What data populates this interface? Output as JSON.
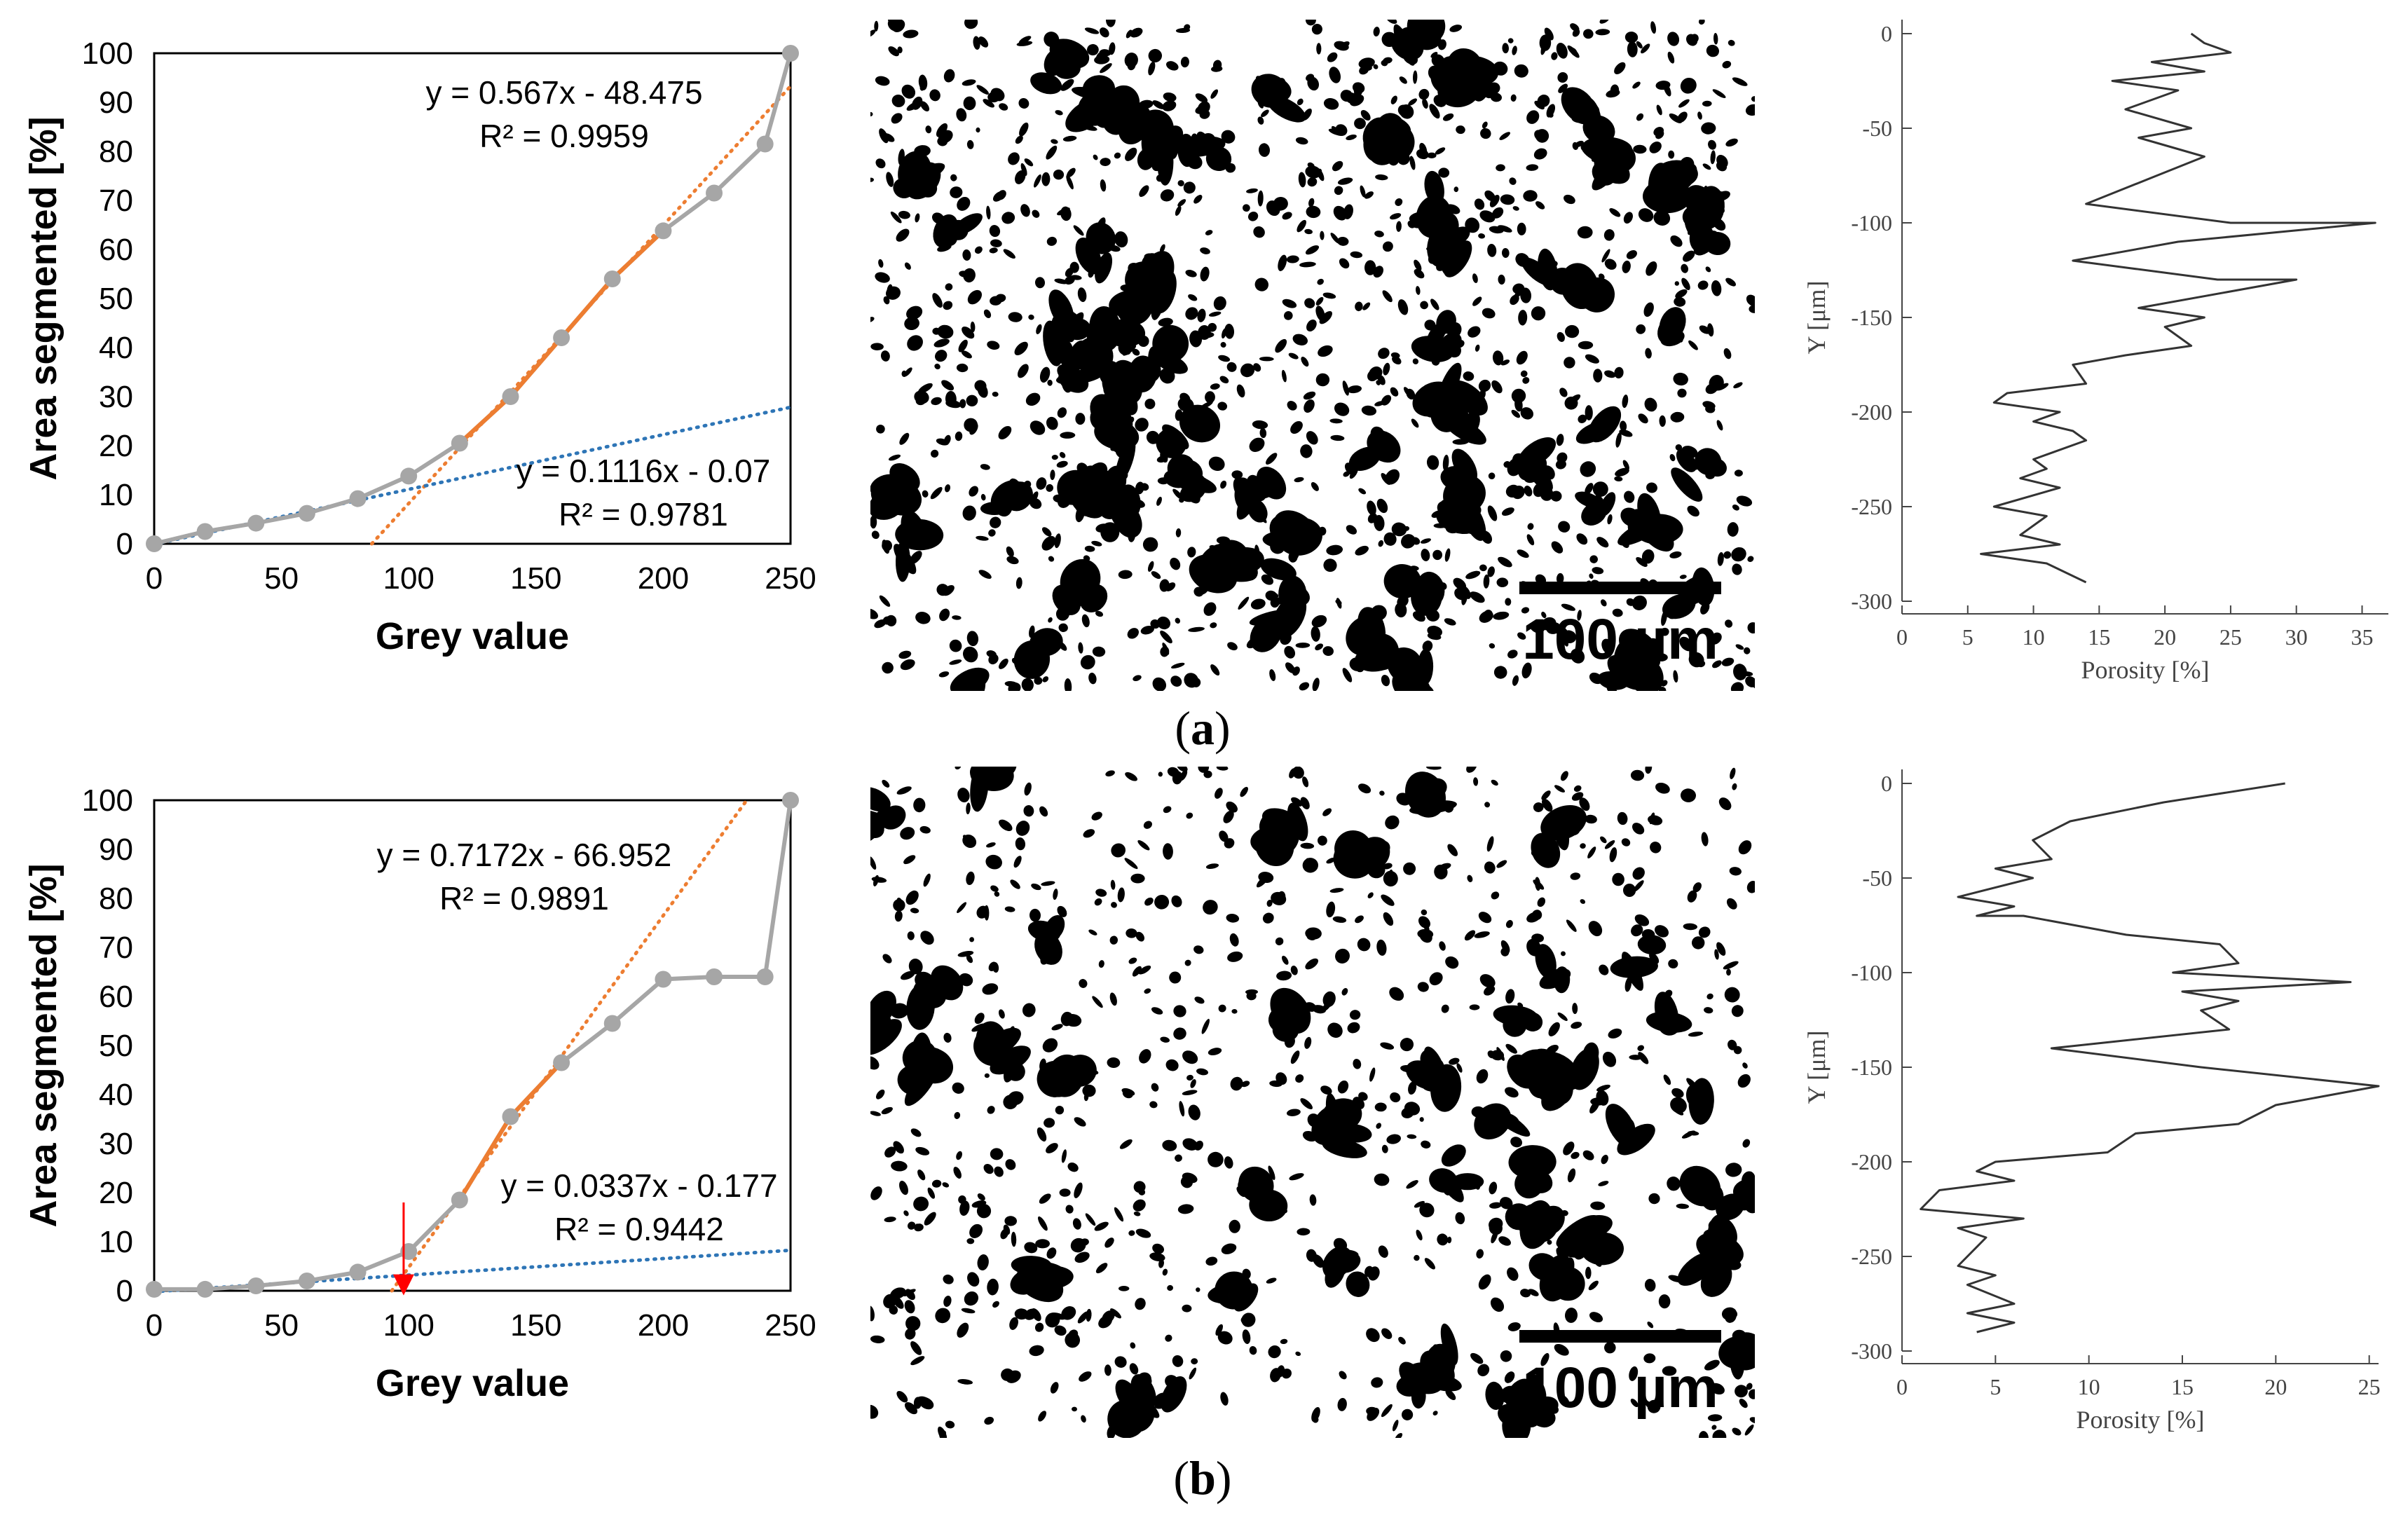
{
  "panels": [
    {
      "label": "a",
      "scale_bar_label": "100 µm",
      "micrograph_description": "binary segmented micrograph, black pores on white background",
      "micrograph_seed": 11,
      "micrograph_density": 1.0
    },
    {
      "label": "b",
      "scale_bar_label": "100 µm",
      "micrograph_description": "binary segmented micrograph, black pores on white background",
      "micrograph_seed": 29,
      "micrograph_density": 0.65
    }
  ],
  "chart_data": [
    {
      "id": "a-threshold",
      "type": "line",
      "title": "",
      "xlabel": "Grey value",
      "ylabel": "Area segmented [%]",
      "xlim": [
        0,
        250
      ],
      "ylim": [
        0,
        100
      ],
      "xticks": [
        0,
        50,
        100,
        150,
        200,
        250
      ],
      "yticks": [
        0,
        10,
        20,
        30,
        40,
        50,
        60,
        70,
        80,
        90,
        100
      ],
      "series": [
        {
          "role": "measured",
          "color": "#a6a6a6",
          "x": [
            0,
            20,
            40,
            60,
            80,
            100,
            120,
            140,
            160,
            180,
            200,
            220,
            240,
            250
          ],
          "y": [
            0,
            2.5,
            4.2,
            6.2,
            9.2,
            13.8,
            20.5,
            30,
            42,
            54,
            63.8,
            71.5,
            81.5,
            100
          ]
        },
        {
          "role": "fit-segment",
          "color": "#ed7d31",
          "x": [
            120,
            140,
            160,
            180,
            200
          ],
          "y": [
            20.5,
            30,
            42,
            54,
            63.8
          ]
        }
      ],
      "trendlines": [
        {
          "slope": 0.567,
          "intercept": -48.475,
          "x_range": [
            85.5,
            250
          ],
          "color": "#ed7d31",
          "equation": "y = 0.567x - 48.475",
          "r2": "R² = 0.9959"
        },
        {
          "slope": 0.1116,
          "intercept": -0.07,
          "x_range": [
            0,
            250
          ],
          "color": "#2e75b6",
          "equation": "y = 0.1116x - 0.07",
          "r2": "R² = 0.9781"
        }
      ]
    },
    {
      "id": "a-profile",
      "type": "line",
      "title": "",
      "xlabel": "Porosity [%]",
      "ylabel": "Y [μm]",
      "xlim": [
        0,
        37
      ],
      "ylim": [
        -300,
        0
      ],
      "xticks": [
        0,
        5,
        10,
        15,
        20,
        25,
        30,
        35
      ],
      "yticks": [
        0,
        -50,
        -100,
        -150,
        -200,
        -250,
        -300
      ],
      "series": [
        {
          "color": "#333333",
          "x": [
            22,
            23,
            25,
            19,
            23,
            16,
            21,
            17,
            22,
            18,
            23,
            14,
            25,
            36,
            21,
            13,
            24,
            30,
            18,
            23,
            20,
            22,
            17,
            13,
            14,
            8,
            7,
            12,
            10,
            13,
            14,
            10,
            11,
            9,
            12,
            7,
            11,
            9,
            12,
            6,
            11,
            14
          ],
          "y": [
            0,
            -5,
            -10,
            -15,
            -20,
            -25,
            -30,
            -40,
            -50,
            -55,
            -65,
            -90,
            -100,
            -100,
            -110,
            -120,
            -130,
            -130,
            -145,
            -150,
            -155,
            -165,
            -170,
            -175,
            -185,
            -190,
            -195,
            -200,
            -205,
            -210,
            -215,
            -225,
            -230,
            -235,
            -240,
            -250,
            -255,
            -265,
            -270,
            -275,
            -280,
            -290
          ]
        }
      ]
    },
    {
      "id": "b-threshold",
      "type": "line",
      "title": "",
      "xlabel": "Grey value",
      "ylabel": "Area segmented [%]",
      "xlim": [
        0,
        250
      ],
      "ylim": [
        0,
        100
      ],
      "xticks": [
        0,
        50,
        100,
        150,
        200,
        250
      ],
      "yticks": [
        0,
        10,
        20,
        30,
        40,
        50,
        60,
        70,
        80,
        90,
        100
      ],
      "series": [
        {
          "role": "measured",
          "color": "#a6a6a6",
          "x": [
            0,
            20,
            40,
            60,
            80,
            100,
            120,
            140,
            160,
            180,
            200,
            220,
            240,
            250
          ],
          "y": [
            0.3,
            0.3,
            1,
            2,
            3.8,
            8,
            18.5,
            35.5,
            46.5,
            54.5,
            63.5,
            64,
            64,
            100
          ]
        },
        {
          "role": "fit-segment",
          "color": "#ed7d31",
          "x": [
            120,
            140,
            160
          ],
          "y": [
            18.5,
            35.5,
            46.5
          ]
        }
      ],
      "trendlines": [
        {
          "slope": 0.7172,
          "intercept": -66.952,
          "x_range": [
            93.35,
            233
          ],
          "color": "#ed7d31",
          "equation": "y = 0.7172x - 66.952",
          "r2": "R² = 0.9891"
        },
        {
          "slope": 0.0337,
          "intercept": -0.177,
          "x_range": [
            0,
            250
          ],
          "color": "#2e75b6",
          "equation": "y = 0.0337x - 0.177",
          "r2": "R² = 0.9442"
        }
      ],
      "annotation": {
        "type": "arrow",
        "x": 98,
        "color": "#ff0000"
      }
    },
    {
      "id": "b-profile",
      "type": "line",
      "title": "",
      "xlabel": "Porosity [%]",
      "ylabel": "Y [μm]",
      "xlim": [
        0,
        25.5
      ],
      "ylim": [
        -300,
        0
      ],
      "xticks": [
        0,
        5,
        10,
        15,
        20,
        25
      ],
      "yticks": [
        0,
        -50,
        -100,
        -150,
        -200,
        -250,
        -300
      ],
      "series": [
        {
          "color": "#333333",
          "x": [
            20.5,
            14,
            9,
            7,
            8,
            5,
            7,
            3,
            6,
            4,
            6.5,
            12,
            17,
            18,
            14.5,
            24,
            15,
            18,
            16,
            17.5,
            8,
            16,
            25.5,
            20,
            18,
            12.5,
            11,
            5,
            4,
            6,
            2,
            1,
            6.5,
            3,
            4.5,
            3,
            5,
            3.5,
            6,
            3.5,
            6,
            4
          ],
          "y": [
            0,
            -10,
            -20,
            -30,
            -40,
            -45,
            -50,
            -60,
            -65,
            -70,
            -70,
            -80,
            -85,
            -95,
            -100,
            -105,
            -110,
            -115,
            -120,
            -130,
            -140,
            -150,
            -160,
            -170,
            -180,
            -185,
            -195,
            -200,
            -205,
            -210,
            -215,
            -225,
            -230,
            -235,
            -240,
            -255,
            -260,
            -265,
            -275,
            -280,
            -285,
            -290
          ]
        }
      ]
    }
  ]
}
